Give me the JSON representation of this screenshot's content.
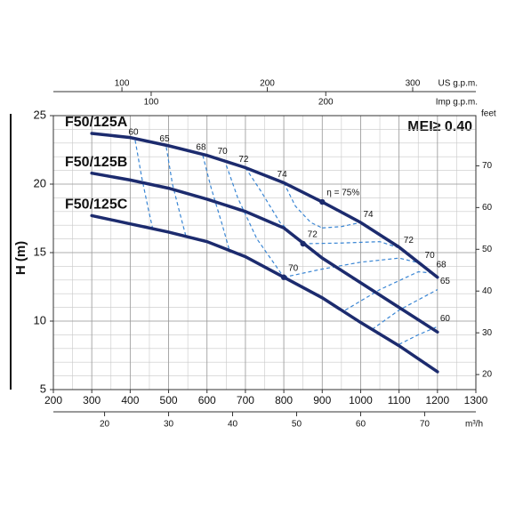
{
  "chart_data": {
    "type": "line",
    "ylabel": "H (m)",
    "annotation": "MEI≥ 0.40",
    "xlim": [
      200,
      1300
    ],
    "xticks": [
      200,
      300,
      400,
      500,
      600,
      700,
      800,
      900,
      1000,
      1100,
      1200,
      1300
    ],
    "ylim": [
      5,
      25
    ],
    "yticks": [
      5,
      10,
      15,
      20,
      25
    ],
    "grid": true,
    "minor_grid_x_step": 50,
    "minor_grid_y_step": 1,
    "secondary_axes": [
      {
        "position": "top",
        "label": "US g.p.m.",
        "lim": [
          52.84,
          343.46
        ],
        "ticks": [
          100,
          200,
          300
        ]
      },
      {
        "position": "top",
        "label": "Imp g.p.m.",
        "lim": [
          43.99,
          285.96
        ],
        "ticks": [
          100,
          200
        ]
      },
      {
        "position": "bottom",
        "label": "m³/h",
        "lim": [
          12,
          78
        ],
        "ticks": [
          20,
          30,
          40,
          50,
          60,
          70
        ]
      },
      {
        "position": "right",
        "label": "feet",
        "lim": [
          16.4,
          82.02
        ],
        "ticks": [
          20,
          30,
          40,
          50,
          60,
          70
        ]
      }
    ],
    "series": [
      {
        "name": "F50/125A",
        "color": "#1c2b6e",
        "x": [
          300,
          400,
          500,
          600,
          700,
          800,
          900,
          1000,
          1100,
          1200
        ],
        "values": [
          23.7,
          23.4,
          22.8,
          22.1,
          21.2,
          20.1,
          18.7,
          17.2,
          15.4,
          13.2
        ]
      },
      {
        "name": "F50/125B",
        "color": "#1c2b6e",
        "x": [
          300,
          400,
          500,
          600,
          700,
          800,
          900,
          1000,
          1100,
          1200
        ],
        "values": [
          20.8,
          20.3,
          19.7,
          18.9,
          18.0,
          16.8,
          14.6,
          12.8,
          11.0,
          9.2
        ]
      },
      {
        "name": "F50/125C",
        "color": "#1c2b6e",
        "x": [
          300,
          400,
          500,
          600,
          700,
          800,
          900,
          1000,
          1100,
          1200
        ],
        "values": [
          17.7,
          17.1,
          16.5,
          15.8,
          14.7,
          13.2,
          11.7,
          9.9,
          8.2,
          6.3
        ]
      }
    ],
    "efficiency_curves": [
      {
        "name": "60",
        "color": "#3a86d4",
        "x": [
          413,
          430,
          447,
          459,
          null,
          1100,
          1150,
          1200
        ],
        "values": [
          23.2,
          20.5,
          18.2,
          16.7,
          null,
          8.3,
          9.0,
          9.6
        ]
      },
      {
        "name": "65",
        "color": "#3a86d4",
        "x": [
          494,
          510,
          530,
          545,
          null,
          1030,
          1100,
          1200
        ],
        "values": [
          22.7,
          20.0,
          17.8,
          16.2,
          null,
          9.4,
          10.8,
          12.3
        ]
      },
      {
        "name": "68",
        "color": "#3a86d4",
        "x": [
          589,
          610,
          640,
          659,
          null,
          960,
          1050,
          1150,
          1190
        ],
        "values": [
          22.1,
          19.8,
          17.0,
          15.1,
          null,
          10.8,
          12.3,
          13.6,
          13.5
        ]
      },
      {
        "name": "70",
        "color": "#3a86d4",
        "x": [
          645,
          680,
          730,
          780,
          800,
          null,
          800,
          900,
          1000,
          1100,
          1160
        ],
        "values": [
          21.8,
          19.0,
          16.0,
          14.0,
          13.2,
          null,
          13.2,
          13.8,
          14.3,
          14.6,
          14.2
        ]
      },
      {
        "name": "72",
        "color": "#3a86d4",
        "x": [
          700,
          740,
          790,
          850,
          null,
          850,
          950,
          1050,
          1105
        ],
        "values": [
          21.2,
          19.5,
          17.2,
          15.65,
          null,
          15.65,
          15.7,
          15.8,
          15.3
        ]
      },
      {
        "name": "74",
        "color": "#3a86d4",
        "x": [
          800,
          830,
          870,
          900,
          null,
          900,
          950,
          1000
        ],
        "values": [
          20.1,
          18.4,
          17.2,
          16.8,
          null,
          16.8,
          16.9,
          17.2
        ]
      }
    ],
    "points": [
      {
        "x": 900,
        "y": 18.7,
        "label": "η = 75%"
      },
      {
        "x": 850,
        "y": 15.65,
        "label": "72"
      },
      {
        "x": 800,
        "y": 13.2,
        "label": "70"
      }
    ]
  }
}
